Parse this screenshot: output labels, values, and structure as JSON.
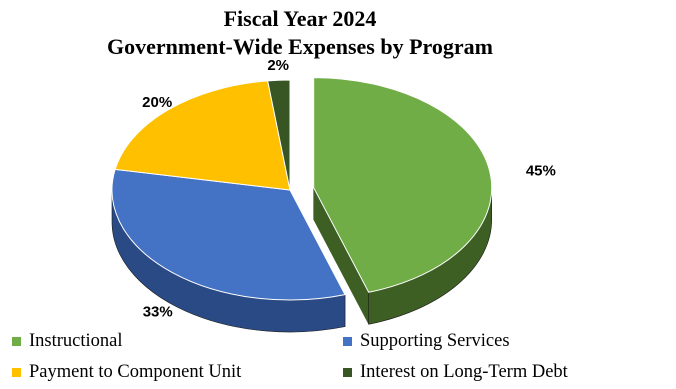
{
  "chart_data": {
    "type": "pie",
    "title": "Fiscal Year 2024",
    "subtitle": "Government-Wide Expenses by Program",
    "slices": [
      {
        "name": "Instructional",
        "value": 45,
        "label": "45%",
        "color": "#70AD47",
        "side_color": "#3E5F24"
      },
      {
        "name": "Supporting Services",
        "value": 33,
        "label": "33%",
        "color": "#4472C4",
        "side_color": "#2A4A85"
      },
      {
        "name": "Payment to Component Unit",
        "value": 20,
        "label": "20%",
        "color": "#FFC000",
        "side_color": "#6E5A10"
      },
      {
        "name": "Interest on Long-Term Debt",
        "value": 2,
        "label": "2%",
        "color": "#375623",
        "side_color": "#223817"
      }
    ],
    "exploded": [
      "Instructional"
    ],
    "three_d": true,
    "legend_position": "bottom"
  }
}
